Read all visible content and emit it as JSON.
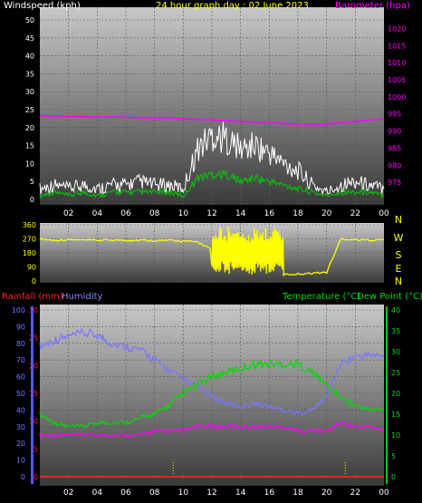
{
  "chart_data": [
    {
      "type": "line",
      "title": "24 hour graph day : 02 June 2023",
      "ylabel_left": "Windspeed (kph)",
      "ylabel_right": "Barometer (hpa)",
      "ylim_left": [
        0,
        50
      ],
      "yticks_left": [
        "0",
        "5",
        "10",
        "15",
        "20",
        "25",
        "30",
        "35",
        "40",
        "45",
        "50"
      ],
      "ylim_right": [
        970,
        1022.5
      ],
      "yticks_right": [
        "975",
        "980",
        "985",
        "990",
        "995",
        "1000",
        "1005",
        "1010",
        "1015",
        "1020"
      ],
      "x": [
        0,
        1,
        2,
        3,
        4,
        5,
        6,
        7,
        8,
        9,
        10,
        11,
        12,
        13,
        14,
        15,
        16,
        17,
        18,
        19,
        20,
        21,
        22,
        23,
        24
      ],
      "xticks": [
        "02",
        "04",
        "06",
        "08",
        "10",
        "12",
        "14",
        "16",
        "18",
        "20",
        "22",
        "00"
      ],
      "series": [
        {
          "name": "Windspeed (kph)",
          "color": "#ffffff",
          "axis": "left",
          "values": [
            3,
            4,
            3,
            4,
            3,
            4,
            4,
            5,
            4,
            4,
            3,
            14,
            18,
            17,
            14,
            15,
            13,
            10,
            8,
            4,
            2,
            4,
            5,
            4,
            3
          ]
        },
        {
          "name": "",
          "color": "#00cc00",
          "axis": "left",
          "values": [
            1,
            2,
            1,
            2,
            1,
            2,
            2,
            2,
            2,
            2,
            1,
            6,
            7,
            7,
            5,
            6,
            5,
            4,
            3,
            2,
            1,
            2,
            2,
            2,
            1
          ]
        },
        {
          "name": "Barometer (hpa)",
          "color": "#ff00ff",
          "axis": "right",
          "values": [
            994.5,
            994.4,
            994.2,
            994.2,
            994.1,
            994.1,
            994.0,
            993.9,
            993.8,
            993.8,
            993.6,
            993.4,
            993.2,
            993.0,
            992.8,
            992.6,
            992.4,
            992.2,
            992.0,
            992.0,
            992.1,
            992.4,
            992.8,
            993.2,
            993.6
          ]
        }
      ]
    },
    {
      "type": "line",
      "ylabel_right": "N W S E N",
      "ylim": [
        0,
        360
      ],
      "yticks": [
        "0",
        "90",
        "180",
        "270",
        "360"
      ],
      "compass": [
        "N",
        "W",
        "S",
        "E",
        "N"
      ],
      "x": [
        0,
        1,
        2,
        3,
        4,
        5,
        6,
        7,
        8,
        9,
        10,
        11,
        12,
        13,
        14,
        15,
        16,
        17,
        18,
        19,
        20,
        21,
        22,
        23,
        24
      ],
      "xticks": [
        "02",
        "04",
        "06",
        "08",
        "10",
        "12",
        "14",
        "16",
        "18",
        "20",
        "22",
        "00"
      ],
      "series": [
        {
          "name": "Wind direction",
          "color": "#ffff00",
          "values": [
            270,
            260,
            265,
            262,
            260,
            263,
            260,
            262,
            258,
            260,
            255,
            250,
            200,
            180,
            190,
            160,
            60,
            40,
            45,
            50,
            55,
            270,
            265,
            262,
            265
          ]
        }
      ]
    },
    {
      "type": "line",
      "ylabel_left": "Rainfall (mm)",
      "ylabel_left2": "Humidity",
      "ylabel_right": "Temperature (°C)",
      "ylabel_right2": "Dew Point (°C)",
      "ylim_humidity": [
        0,
        100
      ],
      "yticks_humidity": [
        "0",
        "10",
        "20",
        "30",
        "40",
        "50",
        "60",
        "70",
        "80",
        "90",
        "100"
      ],
      "ylim_rain": [
        0,
        30
      ],
      "yticks_rain": [
        "0",
        "5",
        "10",
        "15",
        "20",
        "25",
        "30"
      ],
      "ylim_temp": [
        0,
        40
      ],
      "yticks_temp": [
        "0",
        "5",
        "10",
        "15",
        "20",
        "25",
        "30",
        "35",
        "40"
      ],
      "x": [
        0,
        1,
        2,
        3,
        4,
        5,
        6,
        7,
        8,
        9,
        10,
        11,
        12,
        13,
        14,
        15,
        16,
        17,
        18,
        19,
        20,
        21,
        22,
        23,
        24
      ],
      "xticks": [
        "02",
        "04",
        "06",
        "08",
        "10",
        "12",
        "14",
        "16",
        "18",
        "20",
        "22",
        "00"
      ],
      "series": [
        {
          "name": "Humidity",
          "color": "#7777ff",
          "axis": "humidity",
          "values": [
            78,
            82,
            84,
            86,
            85,
            80,
            78,
            76,
            70,
            64,
            58,
            54,
            48,
            44,
            42,
            44,
            42,
            40,
            38,
            40,
            48,
            68,
            72,
            73,
            72
          ]
        },
        {
          "name": "Temperature (°C)",
          "color": "#00dd00",
          "axis": "temp",
          "values": [
            15,
            13,
            12,
            12,
            13,
            13,
            13,
            14,
            15,
            17,
            20,
            22,
            24,
            25,
            26,
            27,
            27,
            27,
            27,
            25,
            22,
            19,
            17,
            16,
            16
          ]
        },
        {
          "name": "Dew Point (°C)",
          "color": "#ff00ff",
          "axis": "temp",
          "values": [
            10,
            10,
            10,
            10,
            10,
            10,
            10,
            10,
            11,
            11,
            11,
            12,
            12,
            12,
            12,
            12,
            12,
            12,
            11,
            11,
            11,
            13,
            12,
            12,
            11
          ]
        },
        {
          "name": "Rainfall (mm)",
          "color": "#ff2222",
          "axis": "rain",
          "values": [
            0,
            0,
            0,
            0,
            0,
            0,
            0,
            0,
            0,
            0,
            0,
            0,
            0,
            0,
            0,
            0,
            0,
            0,
            0,
            0,
            0,
            0,
            0,
            0,
            0
          ]
        }
      ]
    }
  ]
}
